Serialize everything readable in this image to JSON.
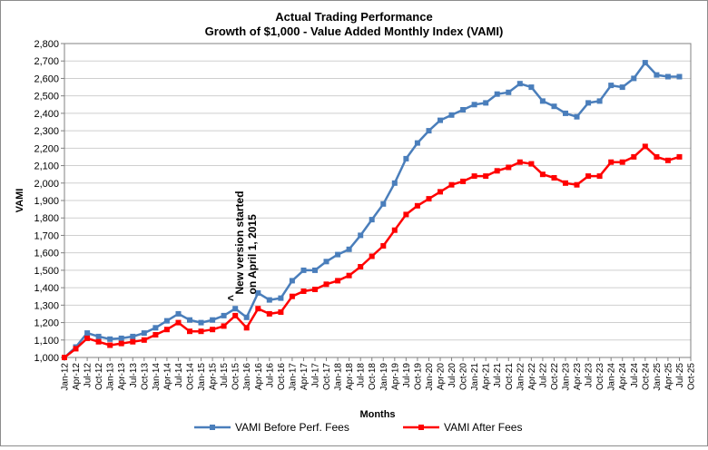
{
  "chart_data": {
    "type": "line",
    "title": "Actual Trading Performance",
    "subtitle": "Growth of $1,000 - Value Added Monthly Index (VAMI)",
    "xlabel": "Months",
    "ylabel": "VAMI",
    "ylim": [
      1000,
      2800
    ],
    "yticks": [
      1000,
      1100,
      1200,
      1300,
      1400,
      1500,
      1600,
      1700,
      1800,
      1900,
      2000,
      2100,
      2200,
      2300,
      2400,
      2500,
      2600,
      2700,
      2800
    ],
    "ytick_labels": [
      "1,000",
      "1,100",
      "1,200",
      "1,300",
      "1,400",
      "1,500",
      "1,600",
      "1,700",
      "1,800",
      "1,900",
      "2,000",
      "2,100",
      "2,200",
      "2,300",
      "2,400",
      "2,500",
      "2,600",
      "2,700",
      "2,800"
    ],
    "xtick_labels": [
      "Jan-12",
      "Apr-12",
      "Jul-12",
      "Oct-12",
      "Jan-13",
      "Apr-13",
      "Jul-13",
      "Oct-13",
      "Jan-14",
      "Apr-14",
      "Jul-14",
      "Oct-14",
      "Jan-15",
      "Apr-15",
      "Jul-15",
      "Oct-15",
      "Jan-16",
      "Apr-16",
      "Jul-16",
      "Oct-16",
      "Jan-17",
      "Apr-17",
      "Jul-17",
      "Oct-17",
      "Jan-18",
      "Apr-18",
      "Jul-18",
      "Oct-18",
      "Jan-19",
      "Apr-19",
      "Jul-19",
      "Oct-19",
      "Jan-20",
      "Apr-20",
      "Jul-20",
      "Oct-20",
      "Jan-21",
      "Apr-21",
      "Jul-21",
      "Oct-21",
      "Jan-22",
      "Apr-22",
      "Jul-22",
      "Oct-22",
      "Jan-23",
      "Apr-23",
      "Jul-23",
      "Oct-23",
      "Jan-24",
      "Apr-24",
      "Jul-24",
      "Oct-24",
      "Jan-25",
      "Apr-25",
      "Jul-25",
      "Oct-25"
    ],
    "grid": true,
    "legend_position": "bottom",
    "annotation": {
      "text_lines": [
        "New version started",
        "on April 1, 2015"
      ],
      "arrow": "<",
      "x": "Oct-15",
      "y": 1320
    },
    "series": [
      {
        "name": "VAMI Before Perf. Fees",
        "color": "#4a7ebb",
        "points": [
          [
            "Jan-12",
            1000
          ],
          [
            "Apr-12",
            1060
          ],
          [
            "Jul-12",
            1140
          ],
          [
            "Oct-12",
            1120
          ],
          [
            "Jan-13",
            1105
          ],
          [
            "Apr-13",
            1110
          ],
          [
            "Jul-13",
            1120
          ],
          [
            "Oct-13",
            1140
          ],
          [
            "Jan-14",
            1170
          ],
          [
            "Apr-14",
            1210
          ],
          [
            "Jul-14",
            1250
          ],
          [
            "Oct-14",
            1215
          ],
          [
            "Jan-15",
            1200
          ],
          [
            "Apr-15",
            1215
          ],
          [
            "Jul-15",
            1240
          ],
          [
            "Oct-15",
            1280
          ],
          [
            "Jan-16",
            1230
          ],
          [
            "Apr-16",
            1370
          ],
          [
            "Jul-16",
            1330
          ],
          [
            "Oct-16",
            1340
          ],
          [
            "Jan-17",
            1440
          ],
          [
            "Apr-17",
            1500
          ],
          [
            "Jul-17",
            1500
          ],
          [
            "Oct-17",
            1550
          ],
          [
            "Jan-18",
            1590
          ],
          [
            "Apr-18",
            1620
          ],
          [
            "Jul-18",
            1700
          ],
          [
            "Oct-18",
            1790
          ],
          [
            "Jan-19",
            1880
          ],
          [
            "Apr-19",
            2000
          ],
          [
            "Jul-19",
            2140
          ],
          [
            "Oct-19",
            2230
          ],
          [
            "Jan-20",
            2300
          ],
          [
            "Apr-20",
            2360
          ],
          [
            "Jul-20",
            2390
          ],
          [
            "Oct-20",
            2420
          ],
          [
            "Jan-21",
            2450
          ],
          [
            "Apr-21",
            2460
          ],
          [
            "Jul-21",
            2510
          ],
          [
            "Oct-21",
            2520
          ],
          [
            "Jan-22",
            2570
          ],
          [
            "Apr-22",
            2550
          ],
          [
            "Jul-22",
            2470
          ],
          [
            "Oct-22",
            2440
          ],
          [
            "Jan-23",
            2400
          ],
          [
            "Apr-23",
            2380
          ],
          [
            "Jul-23",
            2460
          ],
          [
            "Oct-23",
            2470
          ],
          [
            "Jan-24",
            2560
          ],
          [
            "Apr-24",
            2550
          ],
          [
            "Jul-24",
            2600
          ],
          [
            "Oct-24",
            2690
          ],
          [
            "Jan-25",
            2620
          ],
          [
            "Apr-25",
            2610
          ],
          [
            "Jul-25",
            2610
          ]
        ]
      },
      {
        "name": "VAMI After Fees",
        "color": "#ff0000",
        "points": [
          [
            "Jan-12",
            1000
          ],
          [
            "Apr-12",
            1050
          ],
          [
            "Jul-12",
            1110
          ],
          [
            "Oct-12",
            1090
          ],
          [
            "Jan-13",
            1070
          ],
          [
            "Apr-13",
            1080
          ],
          [
            "Jul-13",
            1090
          ],
          [
            "Oct-13",
            1100
          ],
          [
            "Jan-14",
            1130
          ],
          [
            "Apr-14",
            1160
          ],
          [
            "Jul-14",
            1200
          ],
          [
            "Oct-14",
            1150
          ],
          [
            "Jan-15",
            1150
          ],
          [
            "Apr-15",
            1160
          ],
          [
            "Jul-15",
            1180
          ],
          [
            "Oct-15",
            1240
          ],
          [
            "Jan-16",
            1170
          ],
          [
            "Apr-16",
            1280
          ],
          [
            "Jul-16",
            1250
          ],
          [
            "Oct-16",
            1260
          ],
          [
            "Jan-17",
            1350
          ],
          [
            "Apr-17",
            1380
          ],
          [
            "Jul-17",
            1390
          ],
          [
            "Oct-17",
            1420
          ],
          [
            "Jan-18",
            1440
          ],
          [
            "Apr-18",
            1470
          ],
          [
            "Jul-18",
            1520
          ],
          [
            "Oct-18",
            1580
          ],
          [
            "Jan-19",
            1640
          ],
          [
            "Apr-19",
            1730
          ],
          [
            "Jul-19",
            1820
          ],
          [
            "Oct-19",
            1870
          ],
          [
            "Jan-20",
            1910
          ],
          [
            "Apr-20",
            1950
          ],
          [
            "Jul-20",
            1990
          ],
          [
            "Oct-20",
            2010
          ],
          [
            "Jan-21",
            2040
          ],
          [
            "Apr-21",
            2040
          ],
          [
            "Jul-21",
            2070
          ],
          [
            "Oct-21",
            2090
          ],
          [
            "Jan-22",
            2120
          ],
          [
            "Apr-22",
            2110
          ],
          [
            "Jul-22",
            2050
          ],
          [
            "Oct-22",
            2030
          ],
          [
            "Jan-23",
            2000
          ],
          [
            "Apr-23",
            1990
          ],
          [
            "Jul-23",
            2040
          ],
          [
            "Oct-23",
            2040
          ],
          [
            "Jan-24",
            2120
          ],
          [
            "Apr-24",
            2120
          ],
          [
            "Jul-24",
            2150
          ],
          [
            "Oct-24",
            2210
          ],
          [
            "Jan-25",
            2150
          ],
          [
            "Apr-25",
            2130
          ],
          [
            "Jul-25",
            2150
          ]
        ]
      }
    ]
  }
}
